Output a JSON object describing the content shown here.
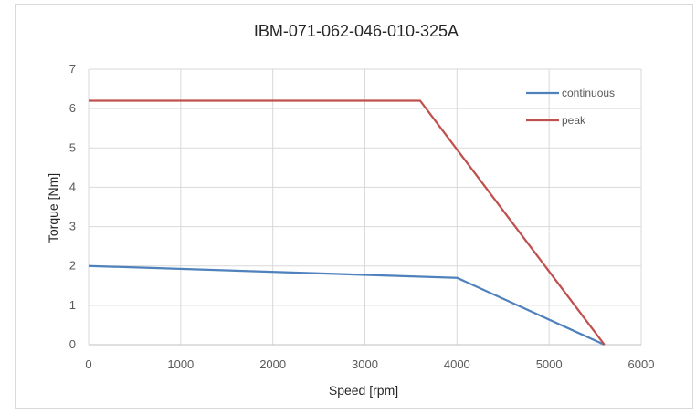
{
  "chart_data": {
    "type": "line",
    "title": "IBM-071-062-046-010-325A",
    "xlabel": "Speed [rpm]",
    "ylabel": "Torque [Nm]",
    "xlim": [
      0,
      6000
    ],
    "ylim": [
      0,
      7
    ],
    "x_ticks": [
      0,
      1000,
      2000,
      3000,
      4000,
      5000,
      6000
    ],
    "y_ticks": [
      0,
      1,
      2,
      3,
      4,
      5,
      6,
      7
    ],
    "grid": true,
    "legend_position": "top-right",
    "series": [
      {
        "name": "continuous",
        "color": "#4f81bd",
        "points": [
          [
            0,
            2.0
          ],
          [
            4000,
            1.7
          ],
          [
            5600,
            0.0
          ]
        ]
      },
      {
        "name": "peak",
        "color": "#c0504d",
        "points": [
          [
            0,
            6.2
          ],
          [
            3600,
            6.2
          ],
          [
            5600,
            0.0
          ]
        ]
      }
    ]
  },
  "colors": {
    "grid": "#d9d9d9",
    "axis": "#bfbfbf"
  }
}
